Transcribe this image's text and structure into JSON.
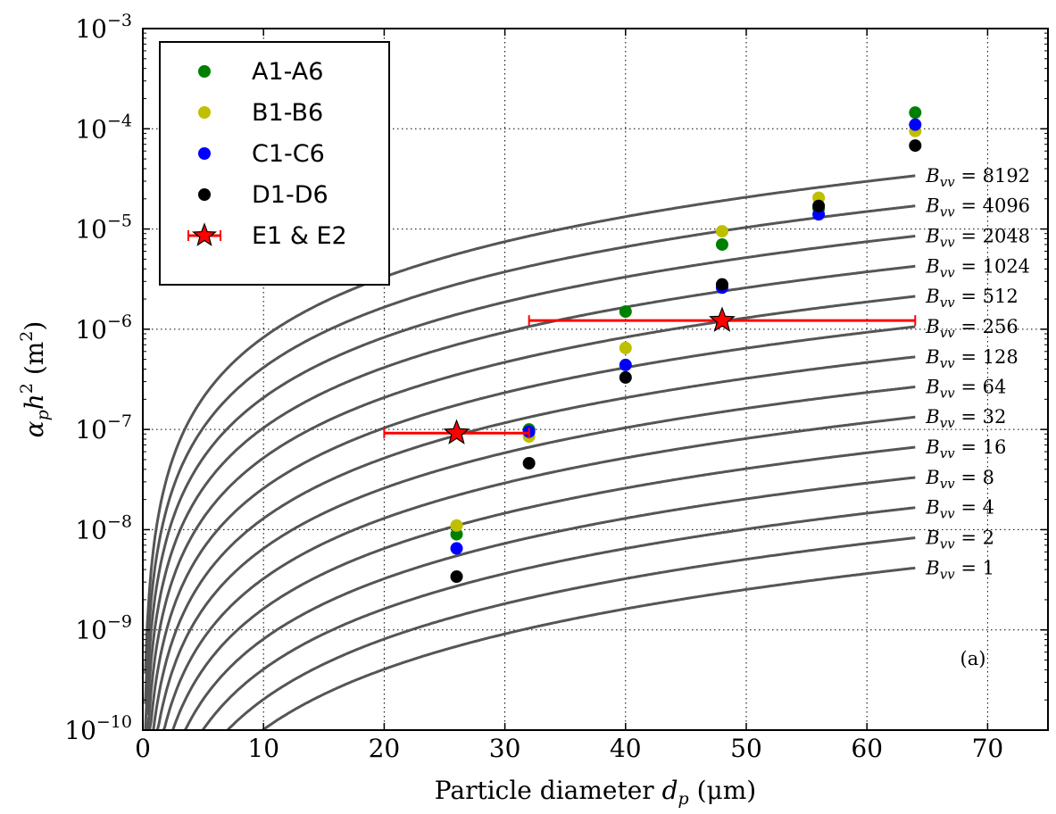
{
  "chart_data": {
    "type": "scatter",
    "xlabel_text": "Particle diameter ",
    "xlabel_symbol": "d",
    "xlabel_symbol_sub": "p",
    "xlabel_unit": " (μm)",
    "ylabel_alpha": "α",
    "ylabel_alpha_sub": "p",
    "ylabel_h": "h",
    "ylabel_h_sup": "2",
    "ylabel_unit": " (m",
    "ylabel_unit_sup": "2",
    "ylabel_close": ")",
    "panel_label": "(a)",
    "xlim": [
      0,
      75
    ],
    "ylim": [
      1e-10,
      0.001
    ],
    "yscale": "log",
    "grid": true,
    "legend_placement": "top-left",
    "x_ticks": [
      0,
      10,
      20,
      30,
      40,
      50,
      60,
      70
    ],
    "y_tick_exponents": [
      -10,
      -9,
      -8,
      -7,
      -6,
      -5,
      -4,
      -3
    ],
    "y_tick_base": "10",
    "curve_symbol": "B",
    "curve_symbol_sub": "vv",
    "curve_equals": " = ",
    "curves": [
      {
        "B_vv": 8192,
        "label": "8192",
        "y_at_64": 3.4e-05
      },
      {
        "B_vv": 4096,
        "label": "4096",
        "y_at_64": 1.7e-05
      },
      {
        "B_vv": 2048,
        "label": "2048",
        "y_at_64": 8.5e-06
      },
      {
        "B_vv": 1024,
        "label": "1024",
        "y_at_64": 4.25e-06
      },
      {
        "B_vv": 512,
        "label": "512",
        "y_at_64": 2.13e-06
      },
      {
        "B_vv": 256,
        "label": "256",
        "y_at_64": 1.06e-06
      },
      {
        "B_vv": 128,
        "label": "128",
        "y_at_64": 5.3e-07
      },
      {
        "B_vv": 64,
        "label": "64",
        "y_at_64": 2.66e-07
      },
      {
        "B_vv": 32,
        "label": "32",
        "y_at_64": 1.33e-07
      },
      {
        "B_vv": 16,
        "label": "16",
        "y_at_64": 6.65e-08
      },
      {
        "B_vv": 8,
        "label": "8",
        "y_at_64": 3.32e-08
      },
      {
        "B_vv": 4,
        "label": "4",
        "y_at_64": 1.66e-08
      },
      {
        "B_vv": 2,
        "label": "2",
        "y_at_64": 8.3e-09
      },
      {
        "B_vv": 1,
        "label": "1",
        "y_at_64": 4.15e-09
      }
    ],
    "series": [
      {
        "name": "A1-A6",
        "color": "#008000",
        "marker": "circle",
        "points": [
          [
            26,
            9e-09
          ],
          [
            32,
            1e-07
          ],
          [
            40,
            1.5e-06
          ],
          [
            48,
            7e-06
          ],
          [
            56,
            1.6e-05
          ],
          [
            64,
            0.000145
          ]
        ]
      },
      {
        "name": "B1-B6",
        "color": "#bfbf00",
        "marker": "circle",
        "points": [
          [
            26,
            1.1e-08
          ],
          [
            32,
            8.5e-08
          ],
          [
            40,
            6.5e-07
          ],
          [
            48,
            9.5e-06
          ],
          [
            56,
            2.05e-05
          ],
          [
            64,
            9.5e-05
          ]
        ]
      },
      {
        "name": "C1-C6",
        "color": "#0000ff",
        "marker": "circle",
        "points": [
          [
            26,
            6.5e-09
          ],
          [
            32,
            9.5e-08
          ],
          [
            40,
            4.4e-07
          ],
          [
            48,
            2.6e-06
          ],
          [
            56,
            1.4e-05
          ],
          [
            64,
            0.00011
          ]
        ]
      },
      {
        "name": "D1-D6",
        "color": "#000000",
        "marker": "circle",
        "points": [
          [
            26,
            3.4e-09
          ],
          [
            32,
            4.6e-08
          ],
          [
            40,
            3.3e-07
          ],
          [
            48,
            2.8e-06
          ],
          [
            56,
            1.7e-05
          ],
          [
            64,
            6.8e-05
          ]
        ]
      },
      {
        "name": "E1 & E2",
        "color": "#ff0000",
        "marker": "star",
        "points": [
          [
            26,
            9.2e-08,
            20,
            32
          ],
          [
            48,
            1.22e-06,
            32,
            64
          ]
        ]
      }
    ]
  }
}
